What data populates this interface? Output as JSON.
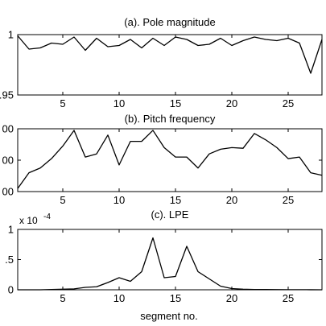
{
  "figure": {
    "xlabel": "segment no."
  },
  "chart_data": [
    {
      "type": "line",
      "title": "(a). Pole magnitude",
      "xlabel": "",
      "ylabel": "",
      "xlim": [
        1,
        28
      ],
      "ylim": [
        0.95,
        1
      ],
      "x_ticks": [
        5,
        10,
        15,
        20,
        25
      ],
      "x_tick_labels": [
        "5",
        "10",
        "15",
        "20",
        "25"
      ],
      "y_ticks": [
        0.95,
        1
      ],
      "y_tick_labels": [
        ".95",
        "1"
      ],
      "series": [
        {
          "x": [
            1,
            2,
            3,
            4,
            5,
            6,
            7,
            8,
            9,
            10,
            11,
            12,
            13,
            14,
            15,
            16,
            17,
            18,
            19,
            20,
            21,
            22,
            23,
            24,
            25,
            26,
            27,
            28
          ],
          "values": [
            0.999,
            0.988,
            0.989,
            0.993,
            0.992,
            0.998,
            0.987,
            0.997,
            0.99,
            0.991,
            0.996,
            0.989,
            0.997,
            0.991,
            0.998,
            0.996,
            0.991,
            0.992,
            0.997,
            0.991,
            0.995,
            0.998,
            0.996,
            0.995,
            0.997,
            0.993,
            0.968,
            0.996
          ]
        }
      ],
      "grid": false
    },
    {
      "type": "line",
      "title": "(b). Pitch frequency",
      "xlabel": "",
      "ylabel": "",
      "xlim": [
        1,
        28
      ],
      "ylim": [
        100,
        300
      ],
      "x_ticks": [
        5,
        10,
        15,
        20,
        25
      ],
      "x_tick_labels": [
        "5",
        "10",
        "15",
        "20",
        "25"
      ],
      "y_ticks": [
        100,
        200,
        300
      ],
      "y_tick_labels": [
        "00",
        "00",
        "00"
      ],
      "series": [
        {
          "x": [
            1,
            2,
            3,
            4,
            5,
            6,
            7,
            8,
            9,
            10,
            11,
            12,
            13,
            14,
            15,
            16,
            17,
            18,
            19,
            20,
            21,
            22,
            23,
            24,
            25,
            26,
            27,
            28
          ],
          "values": [
            110,
            160,
            175,
            205,
            245,
            295,
            210,
            220,
            280,
            185,
            260,
            260,
            295,
            240,
            210,
            210,
            175,
            220,
            235,
            240,
            238,
            285,
            265,
            240,
            205,
            210,
            160,
            152
          ]
        }
      ],
      "grid": false
    },
    {
      "type": "line",
      "title": "(c). LPE",
      "xlabel": "segment no.",
      "ylabel": "",
      "xlim": [
        1,
        28
      ],
      "ylim": [
        0,
        1
      ],
      "scale_label": "x 10",
      "scale_exponent": "-4",
      "x_ticks": [
        5,
        10,
        15,
        20,
        25
      ],
      "x_tick_labels": [
        "5",
        "10",
        "15",
        "20",
        "25"
      ],
      "y_ticks": [
        0,
        0.5,
        1
      ],
      "y_tick_labels": [
        "0",
        ".5",
        "1"
      ],
      "series": [
        {
          "x": [
            1,
            2,
            3,
            4,
            5,
            6,
            7,
            8,
            9,
            10,
            11,
            12,
            13,
            14,
            15,
            16,
            17,
            18,
            19,
            20,
            21,
            22,
            23,
            24,
            25,
            26,
            27,
            28
          ],
          "values": [
            0,
            0,
            0,
            0.005,
            0.01,
            0.015,
            0.04,
            0.05,
            0.12,
            0.2,
            0.14,
            0.3,
            0.86,
            0.2,
            0.22,
            0.72,
            0.3,
            0.18,
            0.06,
            0.02,
            0.01,
            0.005,
            0.005,
            0.003,
            0.002,
            0.002,
            0.001,
            0
          ]
        }
      ],
      "grid": false
    }
  ]
}
